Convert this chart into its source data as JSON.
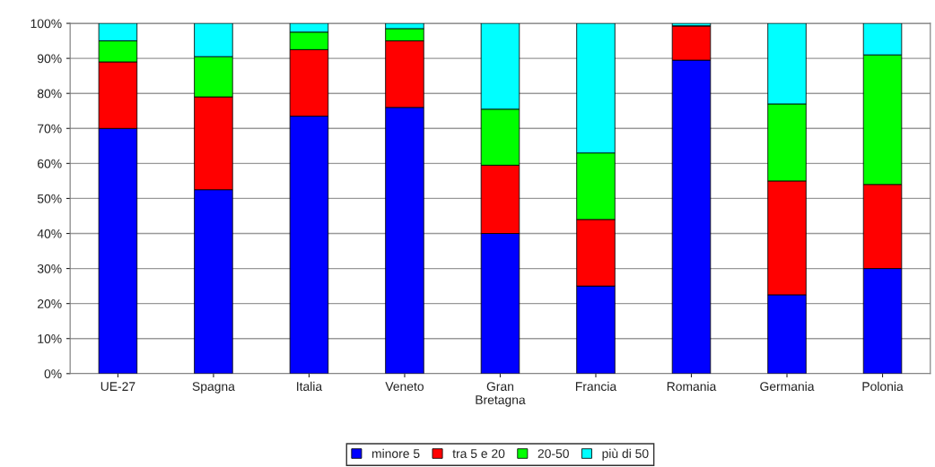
{
  "chart_data": {
    "type": "bar",
    "stacked": true,
    "categories": [
      "UE-27",
      "Spagna",
      "Italia",
      "Veneto",
      "Gran\nBretagna",
      "Francia",
      "Romania",
      "Germania",
      "Polonia"
    ],
    "series": [
      {
        "name": "minore 5",
        "color": "#0000ff",
        "values": [
          70,
          52.5,
          73.5,
          76,
          40,
          25,
          89.5,
          22.5,
          30
        ]
      },
      {
        "name": "tra 5 e 20",
        "color": "#ff0000",
        "values": [
          19,
          26.5,
          19,
          19,
          19.5,
          19,
          9.8,
          32.5,
          24
        ]
      },
      {
        "name": "20-50",
        "color": "#00ff00",
        "values": [
          6,
          11.5,
          5,
          3.5,
          16,
          19,
          null,
          22,
          37
        ]
      },
      {
        "name": "più di 50",
        "color": "#00ffff",
        "values": [
          5,
          9.5,
          2.5,
          1.5,
          24.5,
          37,
          0.7,
          23,
          9
        ]
      }
    ],
    "ylim": [
      0,
      100
    ],
    "yticks": [
      {
        "value": 0,
        "label": "0%"
      },
      {
        "value": 10,
        "label": "10%"
      },
      {
        "value": 20,
        "label": "20%"
      },
      {
        "value": 30,
        "label": "30%"
      },
      {
        "value": 40,
        "label": "40%"
      },
      {
        "value": 50,
        "label": "50%"
      },
      {
        "value": 60,
        "label": "60%"
      },
      {
        "value": 70,
        "label": "70%"
      },
      {
        "value": 80,
        "label": "80%"
      },
      {
        "value": 90,
        "label": "90%"
      },
      {
        "value": 100,
        "label": "100%"
      }
    ],
    "grid": "y",
    "legend": "bottom"
  }
}
